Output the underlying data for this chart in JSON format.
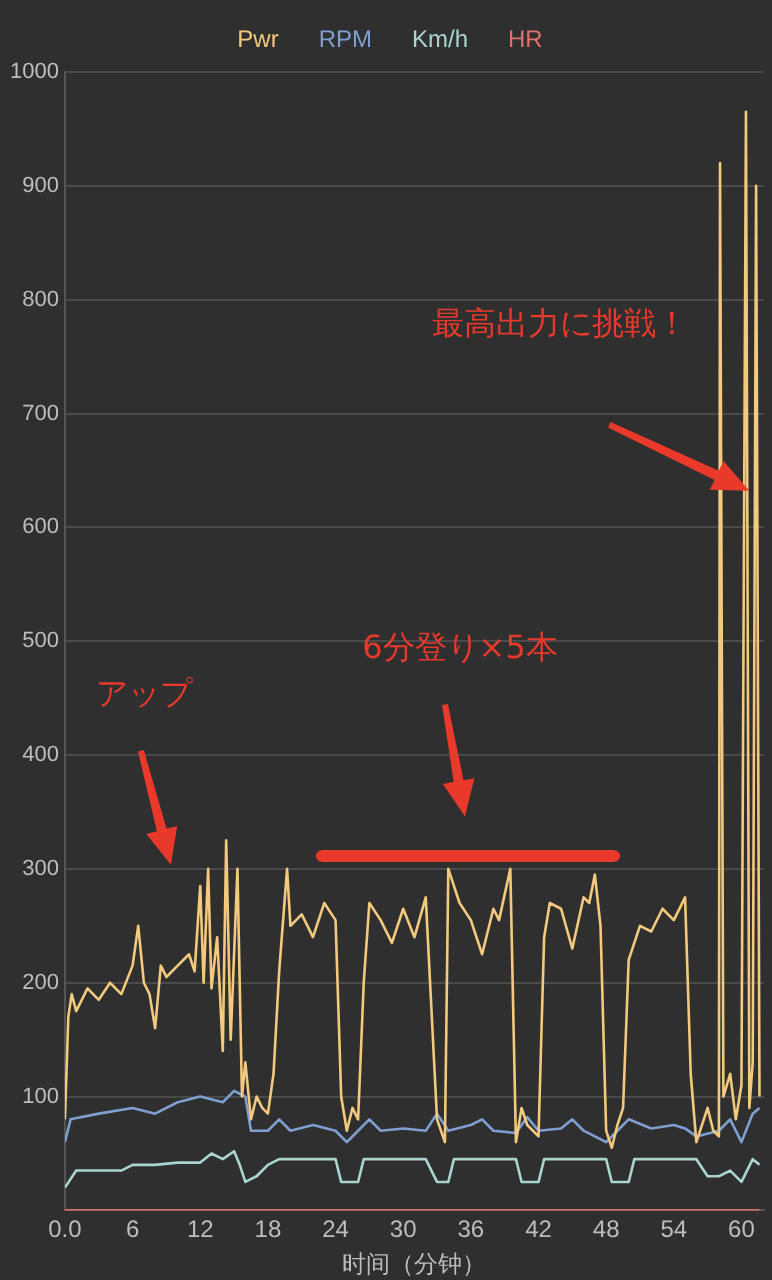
{
  "chart_data": {
    "type": "line",
    "xlabel": "时间（分钟）",
    "xlim": [
      0,
      62
    ],
    "xticks": [
      {
        "value": 0,
        "label": "0.0"
      },
      6,
      12,
      18,
      24,
      30,
      36,
      42,
      48,
      54,
      60
    ],
    "ylim": [
      0,
      1000
    ],
    "yticks": [
      {
        "value": 0,
        "label": null
      },
      100,
      200,
      300,
      400,
      500,
      600,
      700,
      800,
      900,
      1000
    ],
    "grid": "y",
    "legend": "top",
    "marker": "none",
    "line_style": "solid",
    "series": [
      {
        "name": "Pwr",
        "color": "#f2c97d",
        "x": [
          0,
          0.3,
          0.6,
          1,
          2,
          3,
          4,
          5,
          6,
          6.5,
          7,
          7.5,
          8,
          8.5,
          9,
          10,
          11,
          11.5,
          12,
          12.3,
          12.7,
          13,
          13.5,
          14,
          14.3,
          14.7,
          15.3,
          15.7,
          16,
          16.5,
          17,
          17.5,
          18,
          18.5,
          19,
          19.7,
          20,
          21,
          22,
          23,
          24,
          24.5,
          25,
          25.5,
          26,
          26.5,
          27,
          28,
          29,
          30,
          31,
          32,
          33,
          33.7,
          34,
          35,
          36,
          37,
          38,
          38.5,
          39.5,
          40,
          40.5,
          41,
          42,
          42.5,
          43,
          44,
          45,
          46,
          46.5,
          47,
          47.5,
          48,
          48.5,
          49,
          49.5,
          50,
          51,
          52,
          53,
          54,
          55,
          55.5,
          56,
          57,
          57.5,
          58,
          58.1,
          58.4,
          59,
          59.5,
          60,
          60.4,
          60.7,
          61,
          61.3,
          61.6
        ],
        "values": [
          80,
          170,
          190,
          175,
          195,
          185,
          200,
          190,
          215,
          250,
          200,
          190,
          160,
          215,
          205,
          215,
          225,
          210,
          285,
          200,
          300,
          195,
          240,
          140,
          325,
          150,
          300,
          100,
          130,
          80,
          100,
          90,
          85,
          120,
          210,
          300,
          250,
          260,
          240,
          270,
          255,
          100,
          70,
          90,
          80,
          200,
          270,
          255,
          235,
          265,
          240,
          275,
          80,
          60,
          300,
          270,
          255,
          225,
          265,
          255,
          300,
          60,
          90,
          75,
          65,
          240,
          270,
          265,
          230,
          275,
          270,
          295,
          250,
          70,
          55,
          75,
          90,
          220,
          250,
          245,
          265,
          255,
          275,
          120,
          60,
          90,
          70,
          65,
          920,
          100,
          120,
          80,
          110,
          965,
          90,
          130,
          900,
          100
        ]
      },
      {
        "name": "RPM",
        "color": "#7f9fd0",
        "x": [
          0,
          0.5,
          3,
          6,
          8,
          10,
          12,
          14,
          15,
          16,
          16.5,
          18,
          19,
          20,
          22,
          24,
          25,
          26,
          27,
          28,
          30,
          32,
          33,
          34,
          36,
          37,
          38,
          40,
          41,
          42,
          44,
          45,
          46,
          48,
          49,
          50,
          52,
          54,
          55,
          56,
          58,
          59,
          60,
          61,
          61.6
        ],
        "values": [
          60,
          80,
          85,
          90,
          85,
          95,
          100,
          95,
          105,
          100,
          70,
          70,
          80,
          70,
          75,
          70,
          60,
          70,
          80,
          70,
          72,
          70,
          85,
          70,
          75,
          80,
          70,
          68,
          82,
          70,
          72,
          80,
          70,
          60,
          70,
          80,
          72,
          75,
          72,
          65,
          70,
          80,
          60,
          85,
          90
        ]
      },
      {
        "name": "Km/h",
        "color": "#a9d4d0",
        "x": [
          0,
          1,
          5,
          6,
          8,
          10,
          12,
          13,
          14,
          15,
          15.5,
          16,
          17,
          18,
          19,
          24,
          24.5,
          26,
          26.5,
          32,
          33,
          34,
          34.5,
          40,
          40.5,
          42,
          42.5,
          48,
          48.5,
          50,
          50.5,
          56,
          57,
          58,
          59,
          60,
          61,
          61.6
        ],
        "values": [
          20,
          35,
          35,
          40,
          40,
          42,
          42,
          50,
          45,
          52,
          40,
          25,
          30,
          40,
          45,
          45,
          25,
          25,
          45,
          45,
          25,
          25,
          45,
          45,
          25,
          25,
          45,
          45,
          25,
          25,
          45,
          45,
          30,
          30,
          35,
          25,
          45,
          40
        ]
      },
      {
        "name": "HR",
        "color": "#e07070",
        "x": [
          0,
          61.6
        ],
        "values": [
          0,
          0
        ]
      }
    ],
    "annotations": [
      "アップ",
      "6分登り×5本",
      "最高出力に挑戦！"
    ]
  }
}
